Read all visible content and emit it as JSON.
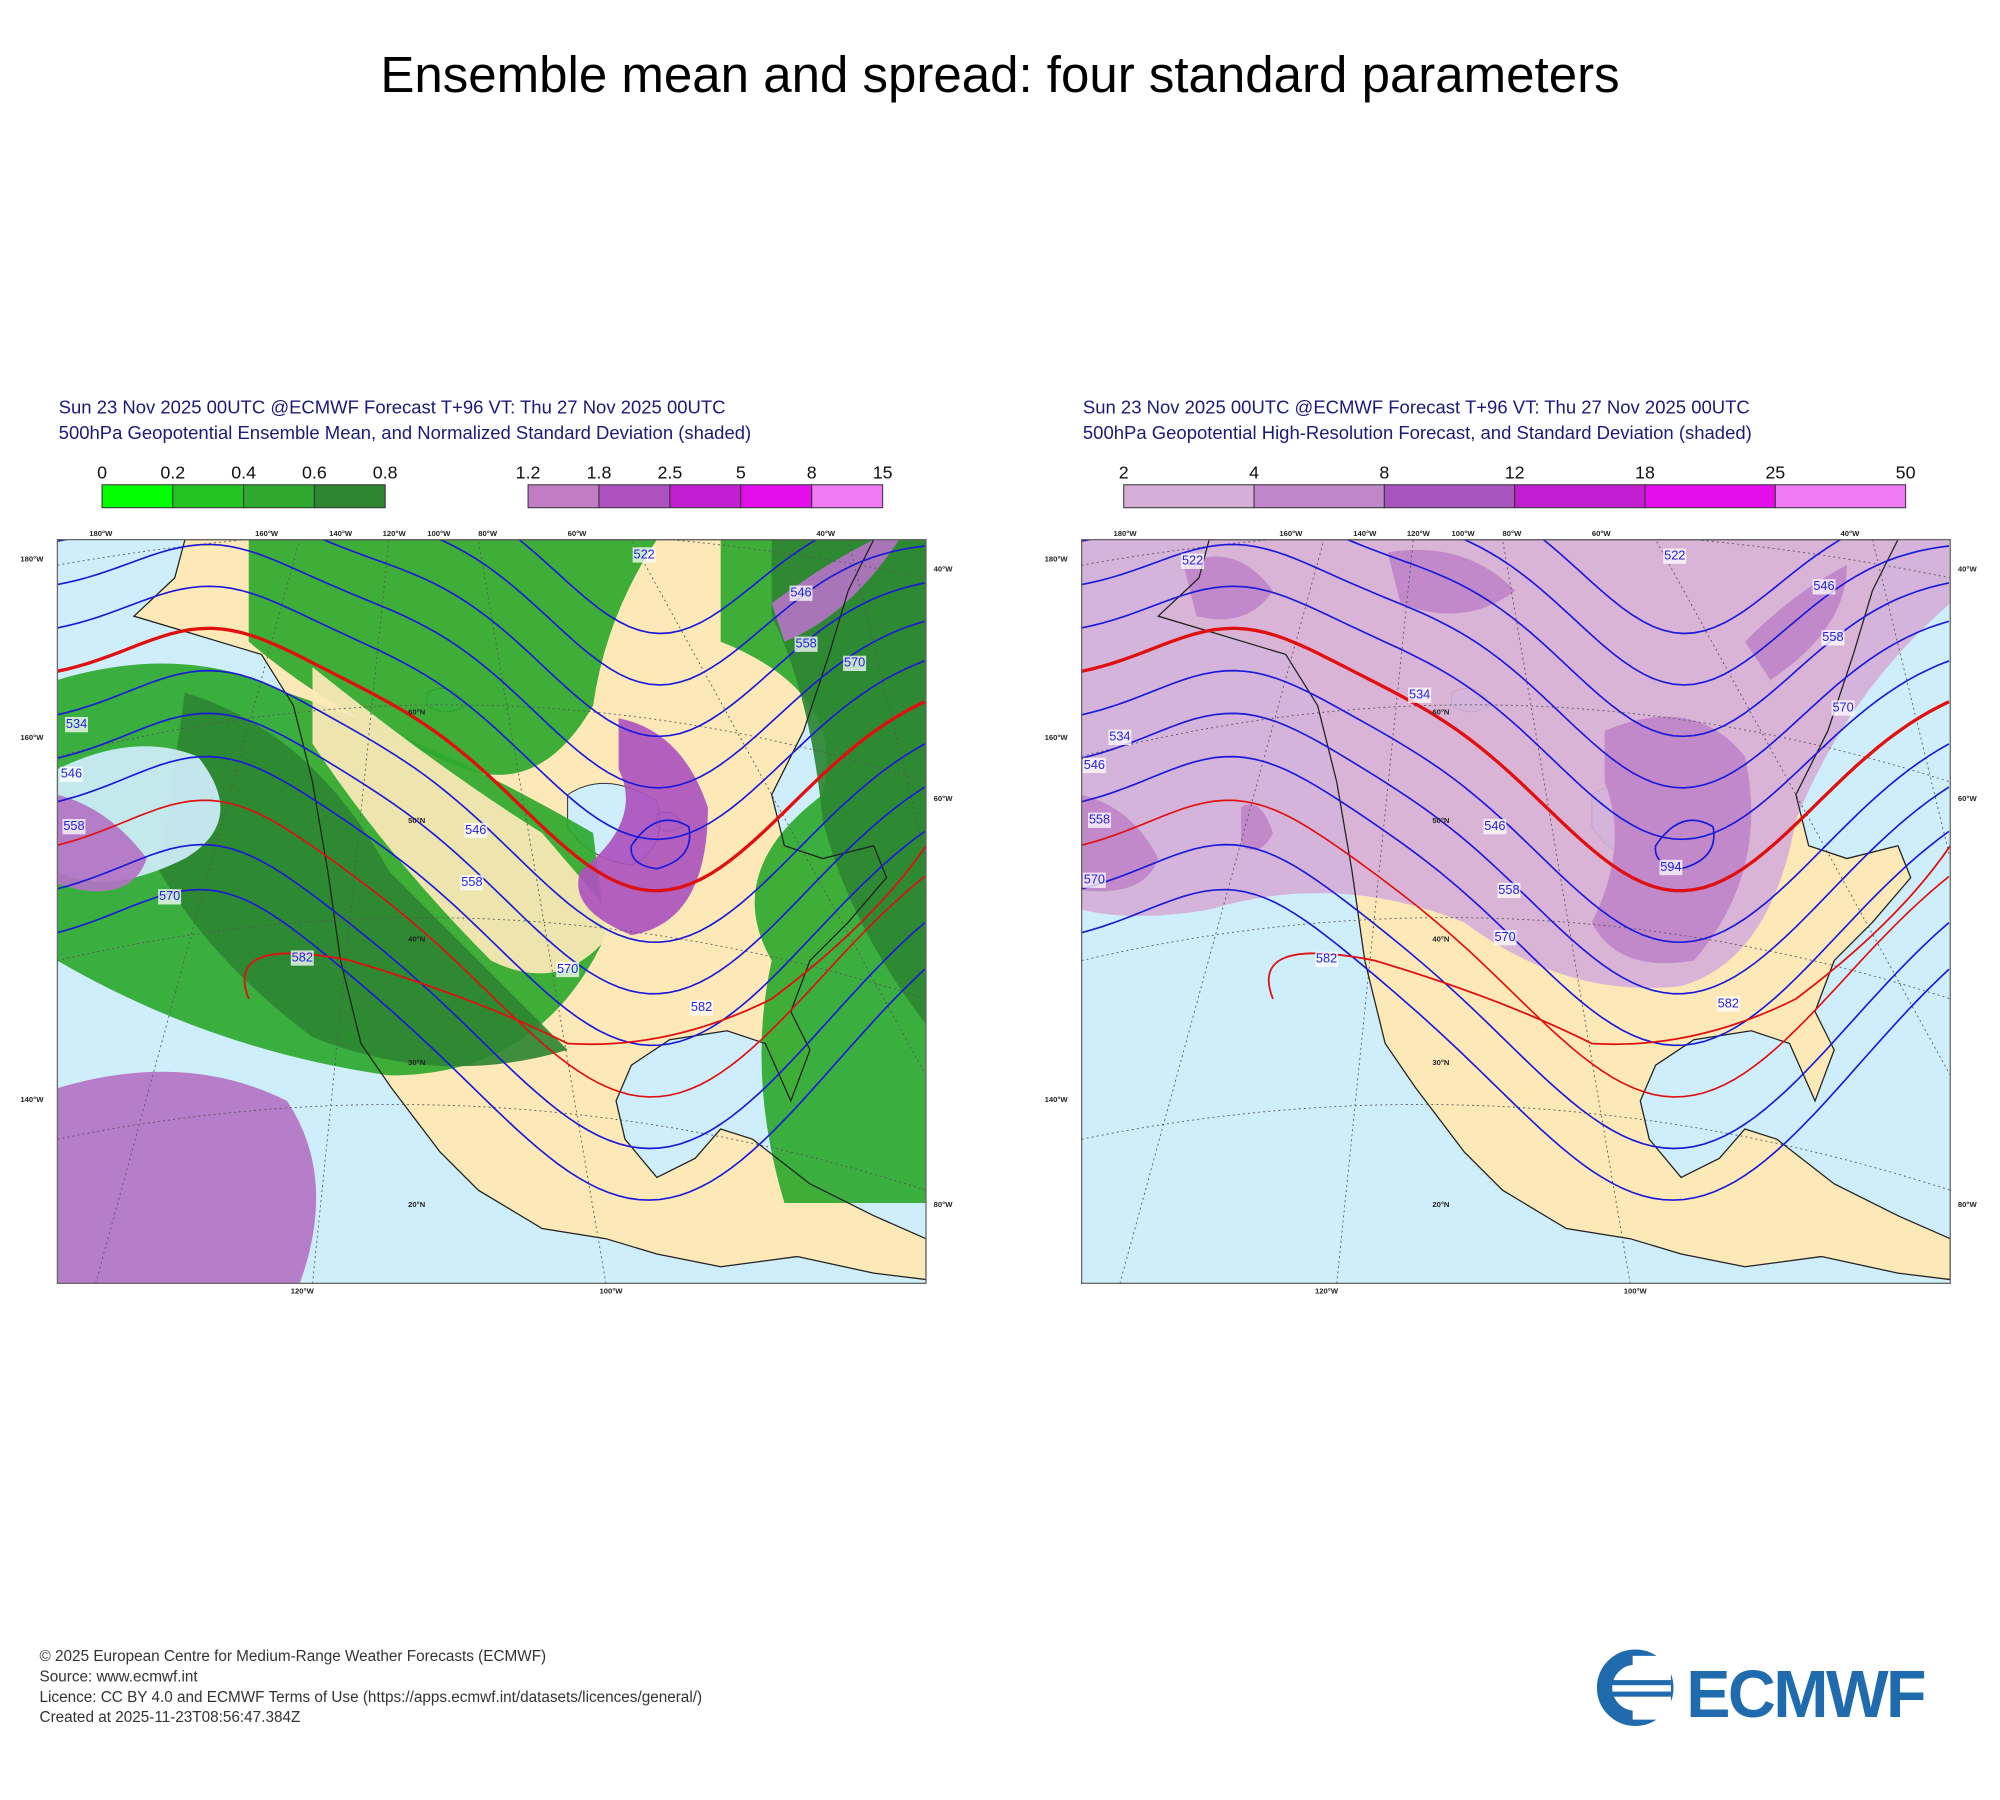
{
  "title": "Ensemble mean and spread: four standard parameters",
  "panels": [
    {
      "header": [
        "Sun 23 Nov 2025 00UTC @ECMWF Forecast T+96 VT: Thu 27 Nov 2025 00UTC",
        "500hPa Geopotential Ensemble Mean, and Normalized Standard Deviation (shaded)"
      ],
      "colorbars": [
        {
          "labels": [
            "0",
            "0.2",
            "0.4",
            "0.6",
            "0.8"
          ],
          "colors": [
            "#00ff00",
            "#22c322",
            "#2ea82e",
            "#2e8532"
          ]
        },
        {
          "labels": [
            "1.2",
            "1.8",
            "2.5",
            "5",
            "8",
            "15"
          ],
          "colors": [
            "#c27cc6",
            "#ad52be",
            "#c21fd0",
            "#e30ee9",
            "#f07af2"
          ]
        }
      ],
      "contour_labels": [
        "534",
        "546",
        "558",
        "570",
        "582",
        "546",
        "558",
        "570",
        "582",
        "522",
        "546",
        "558",
        "570"
      ],
      "lat_labels": [
        "60°N",
        "50°N",
        "40°N",
        "30°N",
        "20°N"
      ],
      "lon_top": [
        "180°W",
        "160°W",
        "140°W",
        "120°W",
        "100°W",
        "80°W",
        "60°W",
        "40°W"
      ],
      "lon_left": [
        "180°W",
        "160°W",
        "140°W"
      ],
      "lon_right": [
        "40°W",
        "60°W",
        "80°W"
      ],
      "lon_bottom": [
        "120°W",
        "100°W"
      ]
    },
    {
      "header": [
        "Sun 23 Nov 2025 00UTC @ECMWF Forecast T+96 VT: Thu 27 Nov 2025 00UTC",
        "500hPa Geopotential High-Resolution Forecast, and Standard Deviation (shaded)"
      ],
      "colorbars": [
        {
          "labels": [
            "2",
            "4",
            "8",
            "12",
            "18",
            "25",
            "50"
          ],
          "colors": [
            "#d6afd8",
            "#bf86c9",
            "#a955c0",
            "#c21fd0",
            "#e30ee9",
            "#f07af2"
          ]
        }
      ],
      "contour_labels": [
        "522",
        "534",
        "546",
        "558",
        "570",
        "582",
        "546",
        "558",
        "570",
        "594",
        "582",
        "546",
        "558",
        "570",
        "522",
        "534"
      ],
      "lat_labels": [
        "60°N",
        "50°N",
        "40°N",
        "30°N",
        "20°N"
      ],
      "lon_top": [
        "180°W",
        "160°W",
        "140°W",
        "120°W",
        "100°W",
        "80°W",
        "60°W",
        "40°W"
      ],
      "lon_left": [
        "180°W",
        "160°W",
        "140°W"
      ],
      "lon_right": [
        "40°W",
        "60°W",
        "80°W"
      ],
      "lon_bottom": [
        "120°W",
        "100°W"
      ]
    }
  ],
  "footer": [
    "© 2025 European Centre for Medium-Range Weather Forecasts (ECMWF)",
    "Source: www.ecmwf.int",
    "Licence: CC BY 4.0 and ECMWF Terms of Use (https://apps.ecmwf.int/datasets/licences/general/)",
    "Created at 2025-11-23T08:56:47.384Z"
  ],
  "logo": "ECMWF"
}
